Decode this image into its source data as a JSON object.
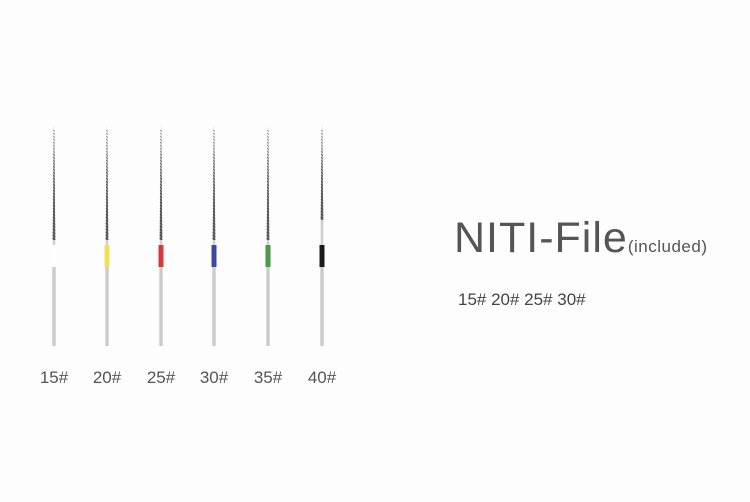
{
  "product": {
    "title": "NITI-File",
    "title_note": "(included)",
    "included_sizes": "15# 20# 25# 30#"
  },
  "files": [
    {
      "label": "15#",
      "band_color": "#ffffff"
    },
    {
      "label": "20#",
      "band_color": "#efe25a"
    },
    {
      "label": "25#",
      "band_color": "#d83a3a"
    },
    {
      "label": "30#",
      "band_color": "#3b4a9c"
    },
    {
      "label": "35#",
      "band_color": "#4b9a4a"
    },
    {
      "label": "40#",
      "band_color": "#1b1b1b"
    }
  ]
}
